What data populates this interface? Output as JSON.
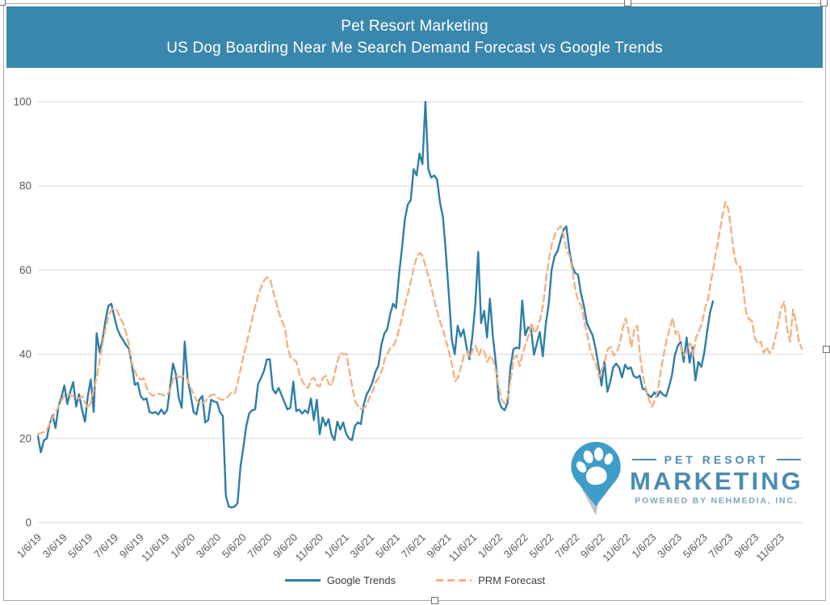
{
  "header": {
    "title_line1": "Pet Resort Marketing",
    "title_line2": "US Dog Boarding Near Me Search Demand Forecast vs Google Trends"
  },
  "logo": {
    "line1": "PET RESORT",
    "line2": "MARKETING",
    "line3": "POWERED BY NEHMEDIA, INC."
  },
  "colors": {
    "header_bg": "#3a87ad",
    "google_trends_line": "#2e7ea7",
    "prm_forecast_line": "#f4b183",
    "gridline": "#d6d6d6",
    "axis_text": "#595959",
    "legend_text": "#3c3c3c",
    "logo_pin": "#3e9cc8",
    "logo_text": "#4a8cb0",
    "logo_subtext": "#7fa6bc"
  },
  "chart_data": {
    "type": "line",
    "title": "Pet Resort Marketing — US Dog Boarding Near Me Search Demand Forecast vs Google Trends",
    "xlabel": "",
    "ylabel": "",
    "ylim": [
      0,
      100
    ],
    "y_ticks": [
      0,
      20,
      40,
      60,
      80,
      100
    ],
    "grid": true,
    "legend_position": "bottom",
    "x_unit": "weekly",
    "x_start": "1/6/19",
    "x_tick_labels": [
      "1/6/19",
      "3/6/19",
      "5/6/19",
      "7/6/19",
      "9/6/19",
      "11/6/19",
      "1/6/20",
      "3/6/20",
      "5/6/20",
      "7/6/20",
      "9/6/20",
      "11/6/20",
      "1/6/21",
      "3/6/21",
      "5/6/21",
      "7/6/21",
      "9/6/21",
      "11/6/21",
      "1/6/22",
      "3/6/22",
      "5/6/22",
      "7/6/22",
      "9/6/22",
      "11/6/22",
      "1/6/23",
      "3/6/23",
      "5/6/23",
      "7/6/23",
      "9/6/23",
      "11/6/23"
    ],
    "series": [
      {
        "name": "Google Trends",
        "color": "#2e7ea7",
        "dash": "solid",
        "x_end_fraction": 0.882,
        "values": [
          20.5,
          16.7,
          19.5,
          20,
          23.5,
          25.5,
          22.5,
          27.6,
          29.8,
          32.6,
          28.2,
          31.1,
          33.4,
          27.6,
          30.5,
          26.9,
          24,
          30.1,
          34,
          26.3,
          45,
          40.5,
          43.5,
          48,
          51.5,
          52,
          49,
          46.1,
          44.5,
          43.4,
          42.2,
          41.3,
          37.5,
          32.7,
          33.2,
          30.1,
          29.2,
          29.5,
          26.3,
          26,
          26.3,
          25.7,
          26.9,
          25.8,
          26.7,
          32,
          37.8,
          35.3,
          29.5,
          27.3,
          43,
          34,
          30.5,
          26.3,
          25.7,
          29.2,
          30.1,
          23.8,
          24.4,
          29.2,
          28.8,
          28.6,
          26.3,
          25.3,
          6.5,
          3.8,
          3.6,
          3.8,
          4.6,
          13.2,
          18,
          23,
          26,
          26.7,
          26.9,
          33,
          34.4,
          36,
          38.8,
          38.8,
          31.7,
          30.7,
          32,
          30.3,
          28.6,
          26.9,
          27.3,
          33.5,
          26.5,
          26.9,
          25.9,
          26.7,
          26,
          29.5,
          24.4,
          29.2,
          21,
          25,
          23,
          24.6,
          21,
          19.6,
          24,
          22.1,
          23.8,
          21.1,
          20,
          19.6,
          23,
          23.8,
          23.4,
          28,
          30.5,
          31.7,
          33.4,
          35.9,
          37.3,
          42.2,
          44.9,
          46,
          49.5,
          52,
          51,
          58.9,
          65,
          72,
          75.6,
          76.6,
          84,
          82.5,
          87.7,
          85.2,
          100,
          84,
          82,
          82.5,
          81.5,
          76,
          72.5,
          64,
          54,
          43.5,
          40,
          46.8,
          44.2,
          45.9,
          41.7,
          38.8,
          44.2,
          51.8,
          64.3,
          47.4,
          50.3,
          44,
          53.2,
          44.2,
          38,
          29,
          27.3,
          26.7,
          28.5,
          37,
          41.2,
          41.6,
          41.4,
          52.8,
          44.5,
          46.4,
          46,
          39.9,
          42.6,
          45.3,
          39.5,
          47,
          52,
          60,
          63.3,
          64.5,
          67,
          69.5,
          70.4,
          65,
          61,
          59.3,
          58.9,
          54.5,
          51.5,
          47.5,
          45.9,
          44.5,
          41.3,
          37.2,
          32.6,
          38.4,
          31.1,
          33.5,
          36.9,
          37.8,
          36.9,
          34.5,
          37.5,
          36.5,
          36.9,
          34.8,
          34.4,
          34.9,
          31.8,
          31.6,
          30.2,
          29.8,
          31,
          30,
          31.2,
          30.4,
          30,
          32.3,
          35,
          39.8,
          42,
          43,
          38.2,
          44,
          38,
          41.7,
          33.8,
          38.2,
          37,
          40.3,
          45.5,
          50,
          52.6
        ]
      },
      {
        "name": "PRM Forecast",
        "color": "#f4b183",
        "dash": "dashed",
        "x_end_fraction": 0.998,
        "values": [
          21,
          21.3,
          21.5,
          22,
          23.5,
          25,
          26.3,
          27.5,
          29,
          30.2,
          30.5,
          30.4,
          30,
          29.6,
          29.5,
          30,
          28.6,
          27.2,
          28.5,
          31.5,
          34.5,
          38.5,
          42.5,
          46,
          49,
          50.6,
          51,
          50.3,
          48.5,
          47.4,
          45,
          42.2,
          38,
          35.9,
          34.4,
          34,
          34.3,
          32,
          30.7,
          30.1,
          30.4,
          30.6,
          30.5,
          30.2,
          30.4,
          31.5,
          34,
          34.9,
          34.6,
          34.7,
          34.9,
          33.8,
          32,
          30.5,
          29,
          28.3,
          28.4,
          28.8,
          29.8,
          30.3,
          30.5,
          29.8,
          29.3,
          29.2,
          29.5,
          30.2,
          31,
          30.7,
          33.4,
          36.5,
          39.7,
          42.6,
          45.5,
          48.7,
          51.6,
          54.1,
          56,
          57.5,
          58.3,
          58,
          55.1,
          52.6,
          49.9,
          48,
          46.4,
          41.7,
          39.2,
          38.8,
          38.2,
          35.3,
          33.6,
          32.4,
          32,
          34,
          34.4,
          32.6,
          32.4,
          34.4,
          34.9,
          33,
          32.6,
          35.5,
          38.4,
          40.3,
          40,
          40.1,
          36,
          32,
          28.8,
          27.6,
          27,
          27.3,
          28,
          30,
          31.3,
          33.5,
          34.4,
          35.9,
          38.8,
          40.2,
          41.5,
          42,
          43.6,
          46.1,
          49,
          52,
          54.7,
          57.6,
          60.8,
          63.3,
          64.1,
          63.3,
          60.8,
          58.3,
          55.7,
          52.6,
          49.9,
          47.5,
          45.5,
          43,
          40.3,
          37.2,
          33.6,
          34.5,
          37.2,
          39.7,
          40.7,
          39.2,
          41.1,
          42,
          39.7,
          41.3,
          40.5,
          38.2,
          39.7,
          38.5,
          35.5,
          31.7,
          29,
          28.2,
          30.1,
          34.5,
          39.2,
          39.7,
          37.2,
          40.3,
          42.5,
          44.5,
          47.5,
          45,
          46.1,
          48.5,
          52,
          58,
          63,
          66.5,
          68.5,
          69.8,
          70.4,
          68,
          64.7,
          63.3,
          59.5,
          55.1,
          52.5,
          51.5,
          47.8,
          44.5,
          41.1,
          39,
          37.5,
          34.5,
          36.5,
          38.5,
          41.3,
          41.7,
          39.7,
          40.5,
          42.5,
          46,
          48.5,
          45.5,
          41.7,
          46.1,
          46.8,
          39,
          34.5,
          31.7,
          29.2,
          27.5,
          29.2,
          31.5,
          36,
          40,
          43.5,
          46.1,
          48.7,
          44.9,
          45.5,
          41.1,
          39.7,
          41.1,
          42.6,
          39.7,
          44,
          45.5,
          47.4,
          50.7,
          53,
          57,
          61,
          65,
          69,
          73,
          76.2,
          74.5,
          69,
          63.5,
          61,
          60.8,
          56,
          50,
          48.3,
          48,
          44,
          42.5,
          43,
          40.3,
          41.7,
          40.3,
          41,
          44,
          47.5,
          51,
          52.5,
          46,
          43,
          50.6,
          47.5,
          43,
          41.3
        ]
      }
    ]
  }
}
